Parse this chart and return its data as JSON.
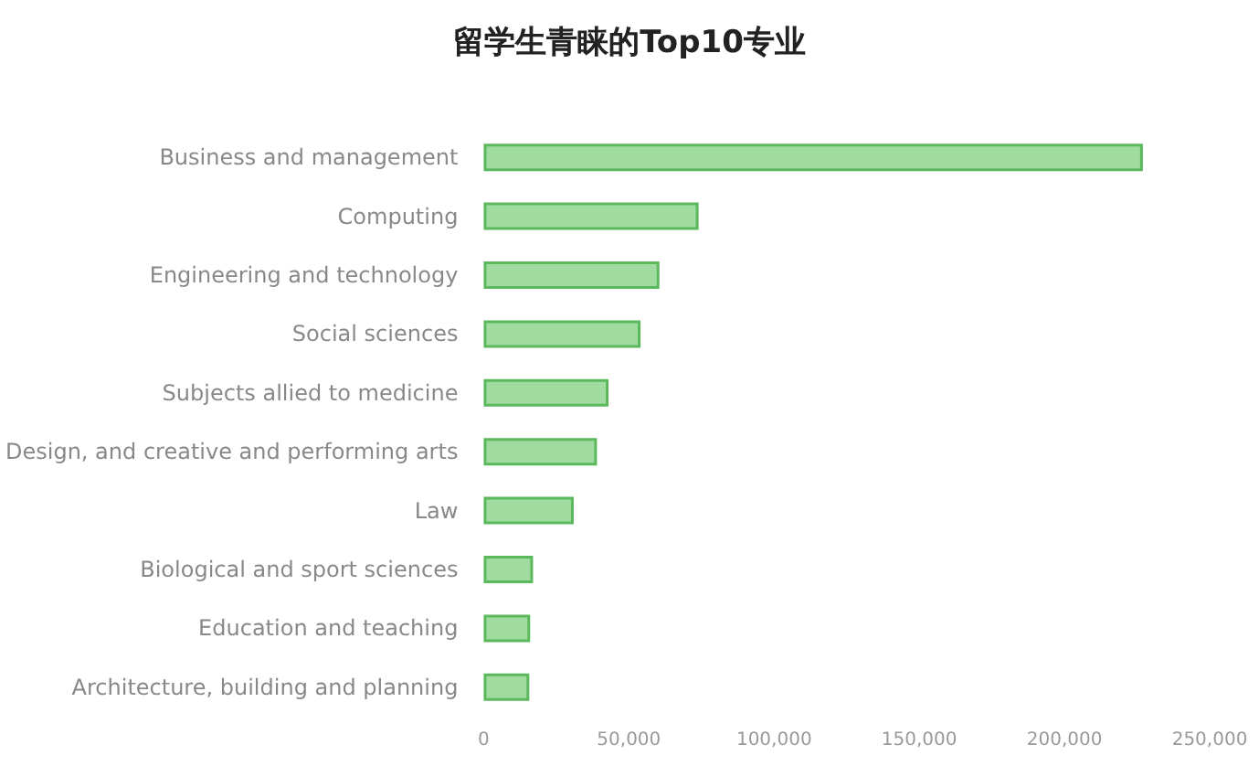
{
  "chart_data": {
    "type": "bar",
    "orientation": "horizontal",
    "title": "留学生青睐的Top10专业",
    "categories": [
      "Business and management",
      "Computing",
      "Engineering and technology",
      "Social sciences",
      "Subjects allied to medicine",
      "Design, and creative and performing arts",
      "Law",
      "Biological and sport sciences",
      "Education and teaching",
      "Architecture, building and planning"
    ],
    "values": [
      227000,
      74000,
      60500,
      54000,
      43000,
      39000,
      31000,
      17000,
      16000,
      15700
    ],
    "color": "#a0dca0",
    "xlim": [
      0,
      250000
    ],
    "xticks": [
      0,
      {
        "value": 50000,
        "label": "50,000"
      },
      {
        "value": 100000,
        "label": "100,000"
      },
      {
        "value": 150000,
        "label": "150,000"
      },
      {
        "value": 200000,
        "label": "200,000"
      },
      {
        "value": 250000,
        "label": "250,000"
      }
    ],
    "grid": false
  }
}
